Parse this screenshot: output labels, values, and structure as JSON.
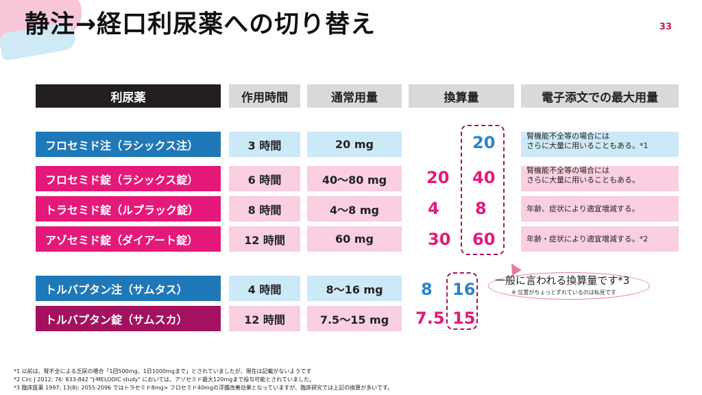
{
  "title": "静注→経口利尿薬への切り替え",
  "page_number": "33",
  "headers": [
    "利尿薬",
    "作用時間",
    "通常用量",
    "換算量",
    "電子添文での最大用量"
  ],
  "rows": [
    {
      "name": "フロセミド注（ラシックス注）",
      "time": "3 時間",
      "dose": "20 mg",
      "conv_left": "",
      "conv_right": "20",
      "note1": "腎機能不全等の場合には",
      "note2": "さらに大量に用いることもある。*1"
    },
    {
      "name": "フロセミド錠（ラシックス錠）",
      "time": "6 時間",
      "dose": "40～80 mg",
      "conv_left": "20",
      "conv_right": "40",
      "note1": "腎機能不全等の場合には",
      "note2": "さらに大量に用いることもある。"
    },
    {
      "name": "トラセミド錠（ルプラック錠）",
      "time": "8 時間",
      "dose": "4～8 mg",
      "conv_left": "4",
      "conv_right": "8",
      "note1": "年齢、症状により適宜増減する。",
      "note2": ""
    },
    {
      "name": "アゾセミド錠（ダイアート錠）",
      "time": "12 時間",
      "dose": "60 mg",
      "conv_left": "30",
      "conv_right": "60",
      "note1": "年齢・症状により適宜増減する。*2",
      "note2": ""
    },
    {
      "name": "トルバプタン注（サムタス）",
      "time": "4 時間",
      "dose": "8～16 mg",
      "conv_left": "8",
      "conv_right": "16",
      "note1": "",
      "note2": ""
    },
    {
      "name": "トルバプタン錠（サムスカ）",
      "time": "12 時間",
      "dose": "7.5～15 mg",
      "conv_left": "7.5",
      "conv_right": "15",
      "note1": "",
      "note2": ""
    }
  ],
  "bubble": {
    "main": "一般に言われる換算量です*3",
    "sub": "※ 位置がちょっとずれているのは私見です"
  },
  "footnotes": [
    "*1 以前は、腎不全による乏尿の場合「1回500mg、1日1000mgまで」とされていましたが、現在は記載がないようです",
    "*2 Circ J 2012; 76: 833-842 \"J-MELODIC study\" においては、アゾセミド最大120mgまで投与可能とされていました。",
    "*3 臨床医薬 1997; 13(8): 2055-2096 ではトラセミド8mg> フロセミド40mgの浮腫改善効果となっていますが、臨床研究では上記の換算が多いです。"
  ],
  "colors": {
    "accent_pink": "#e5197a",
    "accent_blue": "#1f78b8",
    "dark_magenta": "#a3115f"
  }
}
